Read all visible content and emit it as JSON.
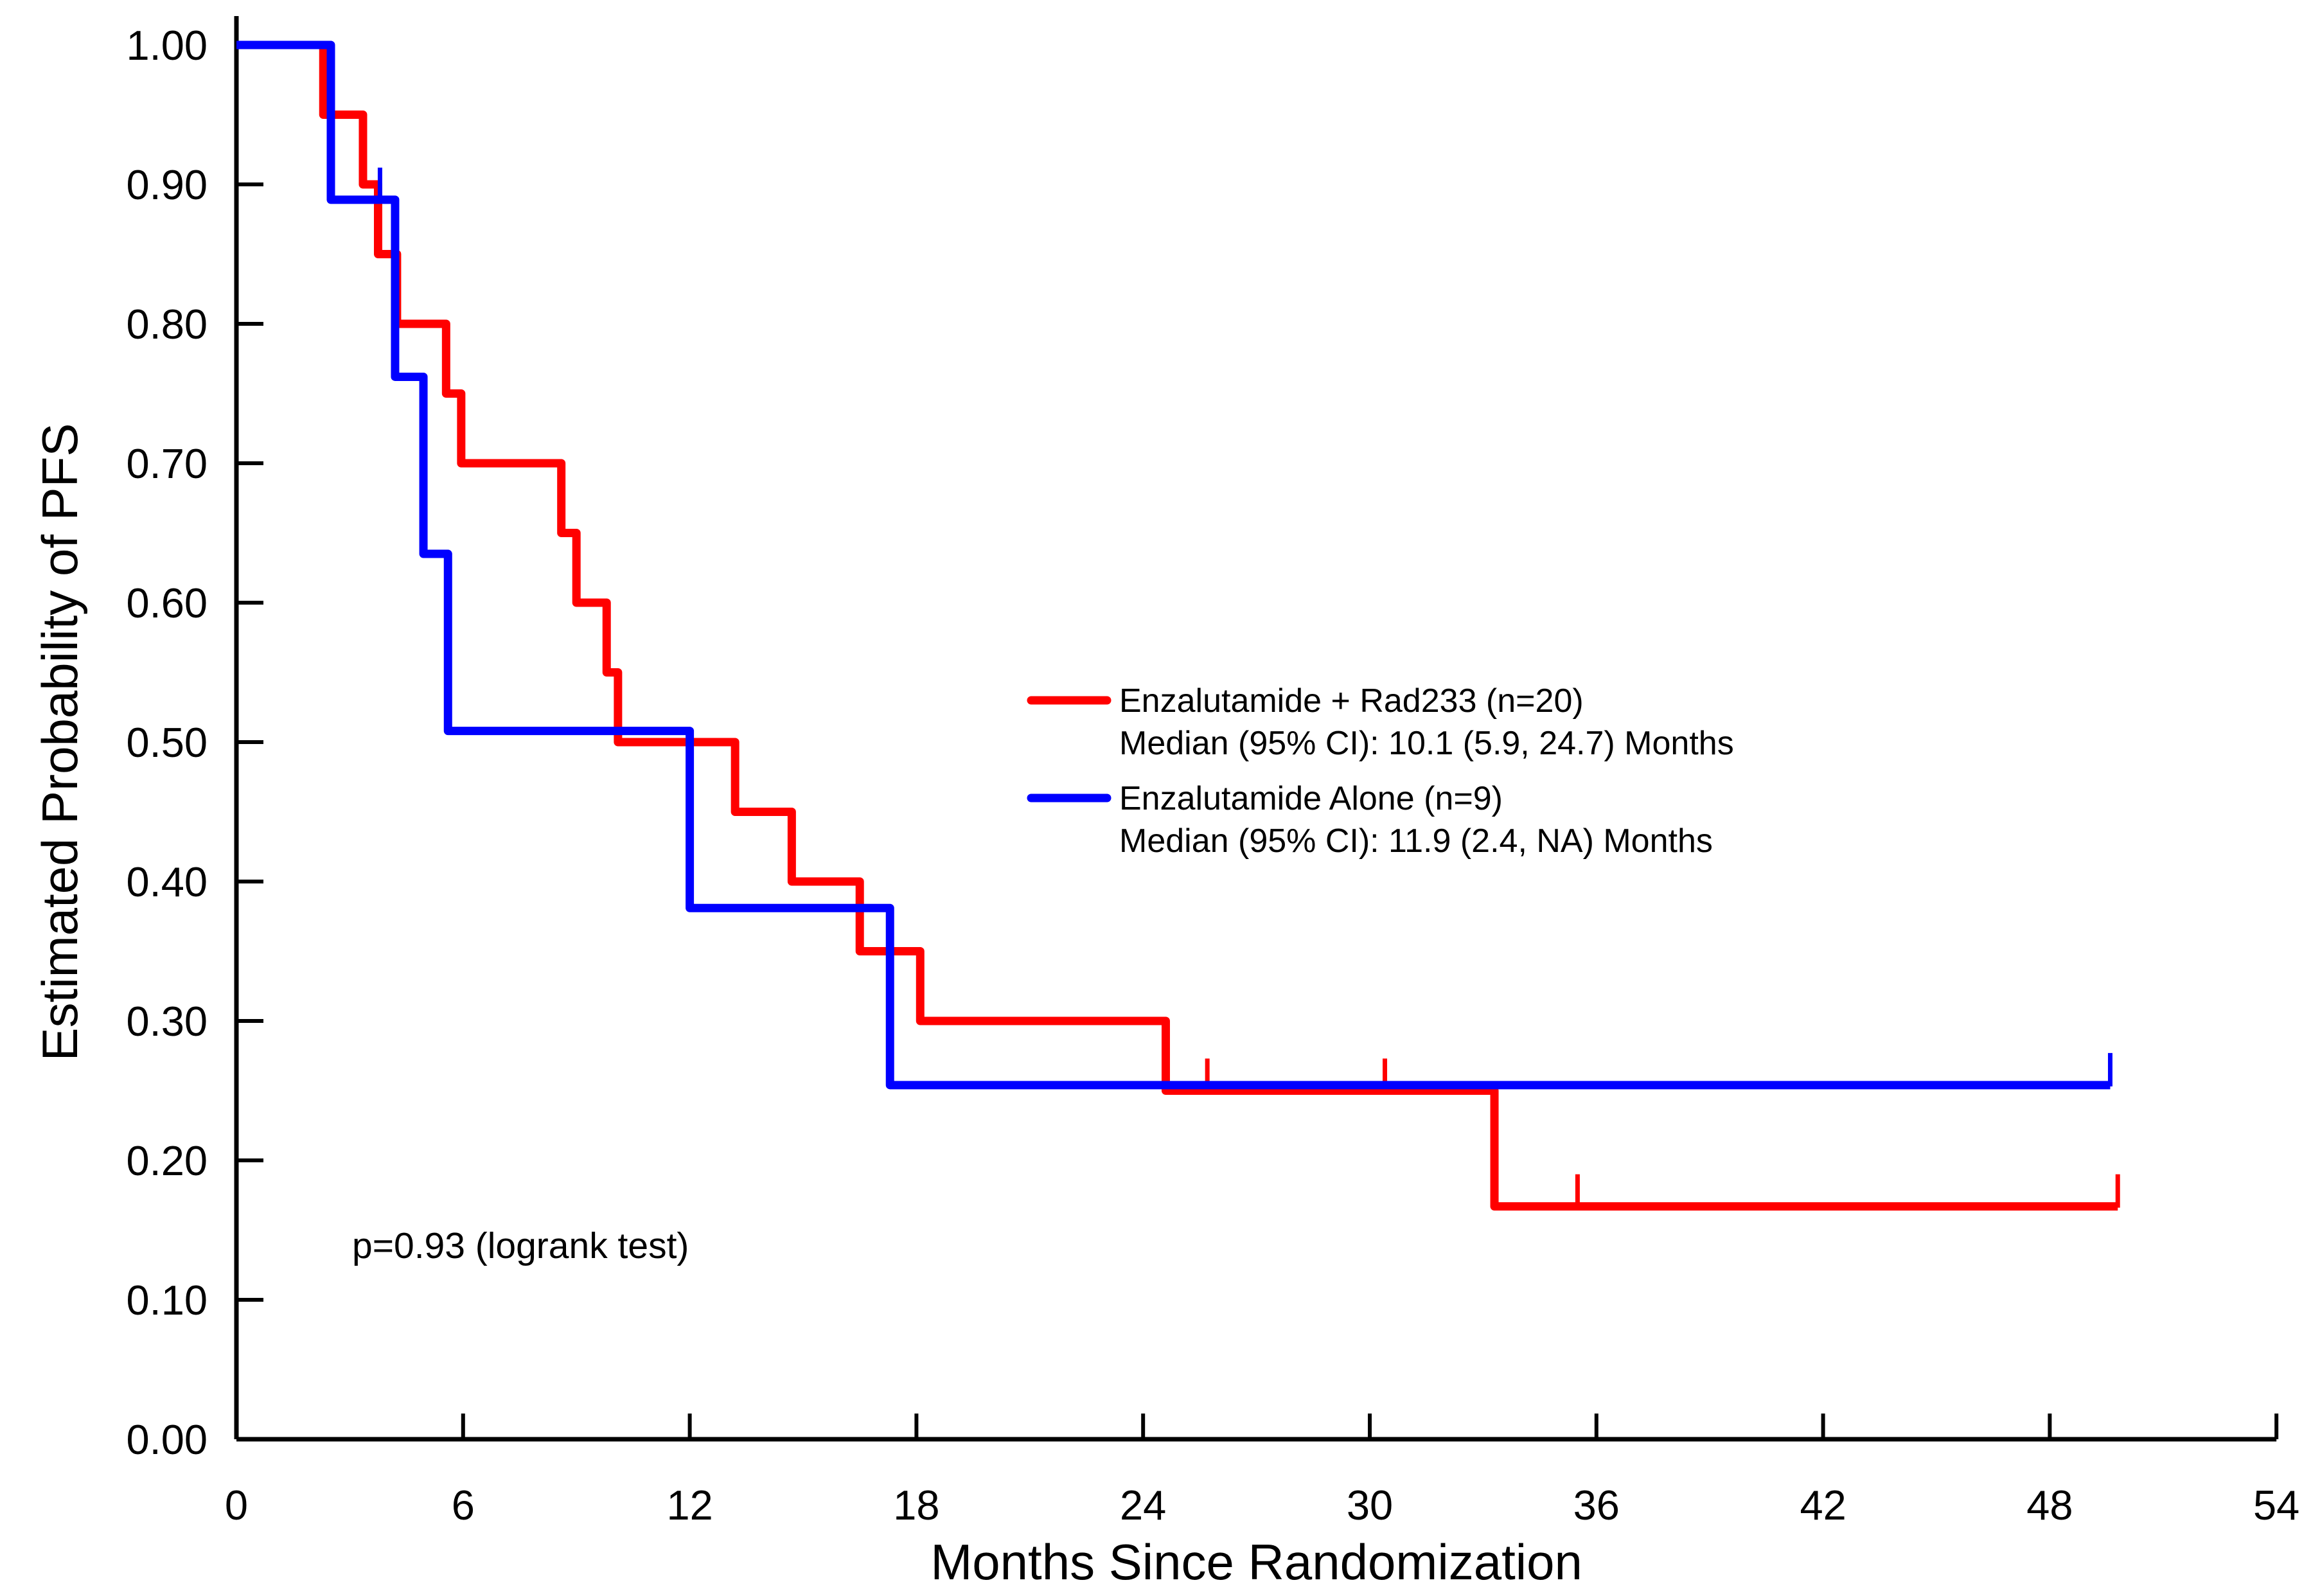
{
  "chart_data": {
    "type": "line",
    "subtype": "kaplan-meier-step",
    "title": "",
    "xlabel": "Months Since Randomization",
    "ylabel": "Estimated Probability of PFS",
    "xlim": [
      0,
      54
    ],
    "ylim": [
      0.0,
      1.0
    ],
    "x_ticks": [
      0,
      6,
      12,
      18,
      24,
      30,
      36,
      42,
      48,
      54
    ],
    "y_ticks": [
      "1.00",
      "0.90",
      "0.80",
      "0.70",
      "0.60",
      "0.50",
      "0.40",
      "0.30",
      "0.20",
      "0.10",
      "0.00"
    ],
    "grid": false,
    "legend_position": "middle-right",
    "annotation": "p=0.93 (logrank test)",
    "background_color": "#ffffff",
    "axis_color": "#000000",
    "series": [
      {
        "name": "Enzalutamide + Rad233 (n=20)",
        "median_text": "Median (95% CI): 10.1 (5.9, 24.7) Months",
        "color": "#ff0000",
        "n": 20,
        "steps": [
          [
            0,
            1.0
          ],
          [
            2.3,
            0.95
          ],
          [
            3.35,
            0.9
          ],
          [
            3.75,
            0.85
          ],
          [
            4.25,
            0.8
          ],
          [
            5.55,
            0.75
          ],
          [
            5.95,
            0.7
          ],
          [
            8.6,
            0.65
          ],
          [
            9.0,
            0.6
          ],
          [
            9.8,
            0.55
          ],
          [
            10.1,
            0.5
          ],
          [
            13.2,
            0.45
          ],
          [
            14.7,
            0.4
          ],
          [
            16.5,
            0.35
          ],
          [
            18.1,
            0.3
          ],
          [
            24.6,
            0.25
          ],
          [
            33.3,
            0.167
          ]
        ],
        "end_time": 49.8,
        "censor_marks": [
          [
            25.7,
            0.25
          ],
          [
            30.4,
            0.25
          ],
          [
            35.5,
            0.167
          ],
          [
            49.8,
            0.167
          ]
        ]
      },
      {
        "name": "Enzalutamide Alone (n=9)",
        "median_text": "Median (95% CI): 11.9 (2.4, NA) Months",
        "color": "#0000ff",
        "n": 9,
        "steps": [
          [
            0,
            1.0
          ],
          [
            2.5,
            0.889
          ],
          [
            4.2,
            0.762
          ],
          [
            4.95,
            0.635
          ],
          [
            5.6,
            0.508
          ],
          [
            12.0,
            0.381
          ],
          [
            17.3,
            0.254
          ]
        ],
        "end_time": 49.6,
        "censor_marks": [
          [
            3.8,
            0.889
          ],
          [
            49.6,
            0.254
          ]
        ]
      }
    ]
  }
}
